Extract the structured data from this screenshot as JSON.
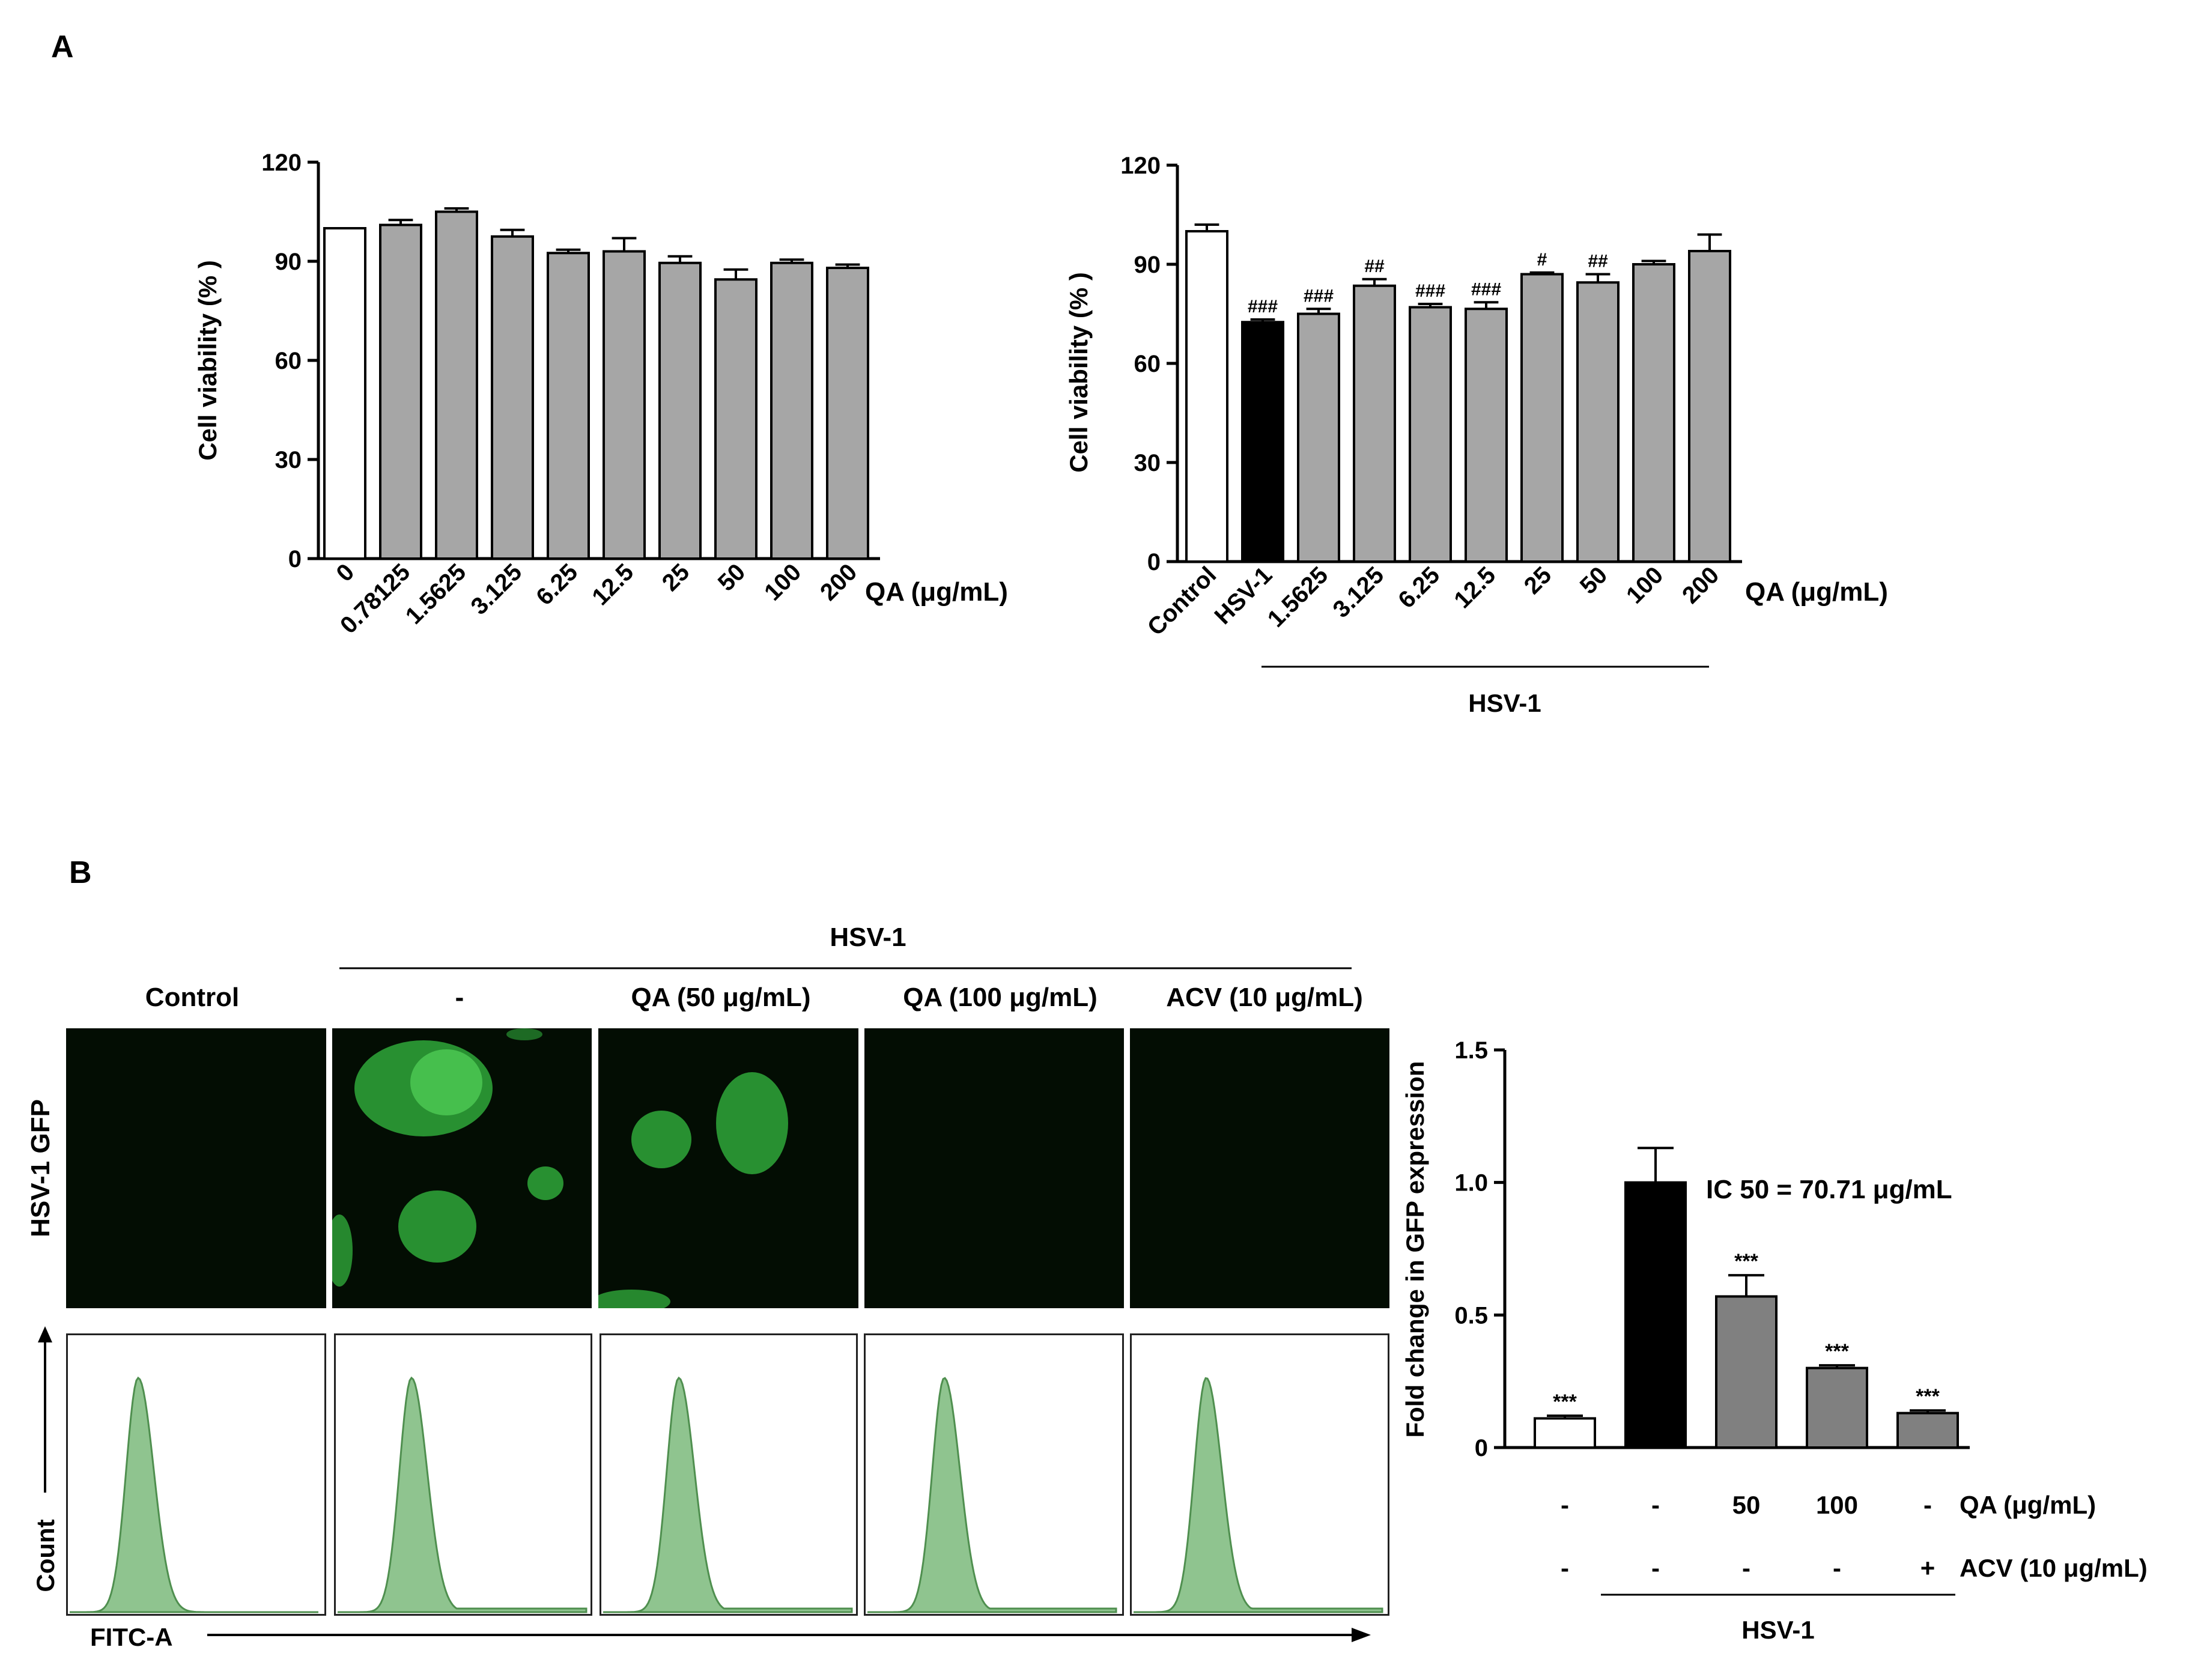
{
  "panel_labels": {
    "a": "A",
    "b": "B"
  },
  "chart_data": [
    {
      "id": "A-left",
      "type": "bar",
      "ylabel": "Cell viability (% )",
      "xlabel": "QA (μg/mL)",
      "ylim": [
        0,
        120
      ],
      "yticks": [
        "0",
        "30",
        "60",
        "90",
        "120"
      ],
      "categories": [
        "0",
        "0.78125",
        "1.5625",
        "3.125",
        "6.25",
        "12.5",
        "25",
        "50",
        "100",
        "200"
      ],
      "values": [
        100,
        101,
        105,
        97.5,
        92.5,
        93,
        89.5,
        84.5,
        89.5,
        88
      ],
      "errors": [
        0,
        1.5,
        1,
        2,
        1,
        4,
        2,
        3,
        1,
        1
      ],
      "bar_colors": [
        "#ffffff",
        "#a6a6a6",
        "#a6a6a6",
        "#a6a6a6",
        "#a6a6a6",
        "#a6a6a6",
        "#a6a6a6",
        "#a6a6a6",
        "#a6a6a6",
        "#a6a6a6"
      ],
      "annotations": [
        "",
        "",
        "",
        "",
        "",
        "",
        "",
        "",
        "",
        ""
      ]
    },
    {
      "id": "A-right",
      "type": "bar",
      "ylabel": "Cell viability (% )",
      "xlabel": "QA (μg/mL)",
      "group_label": "HSV-1",
      "ylim": [
        0,
        120
      ],
      "yticks": [
        "0",
        "30",
        "60",
        "90",
        "120"
      ],
      "categories": [
        "Control",
        "HSV-1",
        "1.5625",
        "3.125",
        "6.25",
        "12.5",
        "25",
        "50",
        "100",
        "200"
      ],
      "values": [
        100,
        72.5,
        75,
        83.5,
        77,
        76.5,
        87,
        84.5,
        90,
        94
      ],
      "errors": [
        2,
        0.8,
        1.5,
        2,
        1,
        2,
        0.5,
        2.5,
        1,
        5
      ],
      "bar_colors": [
        "#ffffff",
        "#000000",
        "#a6a6a6",
        "#a6a6a6",
        "#a6a6a6",
        "#a6a6a6",
        "#a6a6a6",
        "#a6a6a6",
        "#a6a6a6",
        "#a6a6a6"
      ],
      "annotations": [
        "",
        "###",
        "###",
        "##",
        "###",
        "###",
        "#",
        "##",
        "",
        ""
      ]
    },
    {
      "id": "B-right",
      "type": "bar",
      "ylabel": "Fold change in GFP expression",
      "ylim": [
        0,
        1.5
      ],
      "yticks": [
        "0",
        "0.5",
        "1.0",
        "1.5"
      ],
      "values": [
        0.11,
        1.0,
        0.57,
        0.3,
        0.13
      ],
      "errors": [
        0.01,
        0.13,
        0.08,
        0.01,
        0.01
      ],
      "bar_colors": [
        "#ffffff",
        "#000000",
        "#808080",
        "#808080",
        "#808080"
      ],
      "annotations": [
        "***",
        "",
        "***",
        "***",
        "***"
      ],
      "note": "IC 50 = 70.71 μg/mL",
      "rows": [
        {
          "label": "QA (μg/mL)",
          "values": [
            "-",
            "-",
            "50",
            "100",
            "-"
          ]
        },
        {
          "label": "ACV (10 μg/mL)",
          "values": [
            "-",
            "-",
            "-",
            "-",
            "+"
          ]
        }
      ],
      "group_label": "HSV-1"
    }
  ],
  "panel_b": {
    "header": "HSV-1",
    "columns": [
      "Control",
      "-",
      "QA (50 μg/mL)",
      "QA (100 μg/mL)",
      "ACV (10 μg/mL)"
    ],
    "row_label": "HSV-1 GFP",
    "hist_y_label": "Count",
    "hist_x_label": "FITC-A",
    "colors": {
      "gfp": "#2fa83a",
      "hist_fill": "#8fc48f",
      "hist_line": "#4f8f4f",
      "image_bg": "#030d03"
    }
  }
}
